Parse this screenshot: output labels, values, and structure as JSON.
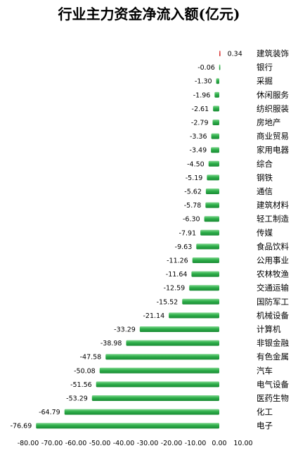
{
  "chart_data": {
    "type": "bar",
    "orientation": "horizontal",
    "title": "行业主力资金净流入额(亿元)",
    "xlabel": "",
    "ylabel": "",
    "xlim": [
      -80,
      10
    ],
    "xticks": [
      "-80.00",
      "-70.00",
      "-60.00",
      "-50.00",
      "-40.00",
      "-30.00",
      "-20.00",
      "-10.00",
      "0.00",
      "10.00"
    ],
    "grid": false,
    "legend": "none",
    "colors": {
      "positive": "#cc1f1f",
      "negative": "#2eaf4a",
      "negative_light": "#7fd68e",
      "negative_dark": "#1a8a35"
    },
    "categories": [
      "建筑装饰",
      "银行",
      "采掘",
      "休闲服务",
      "纺织服装",
      "房地产",
      "商业贸易",
      "家用电器",
      "综合",
      "钢铁",
      "通信",
      "建筑材料",
      "轻工制造",
      "传媒",
      "食品饮料",
      "公用事业",
      "农林牧渔",
      "交通运输",
      "国防军工",
      "机械设备",
      "计算机",
      "非银金融",
      "有色金属",
      "汽车",
      "电气设备",
      "医药生物",
      "化工",
      "电子"
    ],
    "values": [
      0.34,
      -0.06,
      -1.3,
      -1.96,
      -2.61,
      -2.79,
      -3.36,
      -3.49,
      -4.5,
      -5.19,
      -5.62,
      -5.78,
      -6.3,
      -7.91,
      -9.63,
      -11.26,
      -11.64,
      -12.59,
      -15.52,
      -21.14,
      -33.29,
      -38.98,
      -47.58,
      -50.08,
      -51.56,
      -53.29,
      -64.79,
      -76.69
    ],
    "value_labels": [
      "0.34",
      "-0.06",
      "-1.30",
      "-1.96",
      "-2.61",
      "-2.79",
      "-3.36",
      "-3.49",
      "-4.50",
      "-5.19",
      "-5.62",
      "-5.78",
      "-6.30",
      "-7.91",
      "-9.63",
      "-11.26",
      "-11.64",
      "-12.59",
      "-15.52",
      "-21.14",
      "-33.29",
      "-38.98",
      "-47.58",
      "-50.08",
      "-51.56",
      "-53.29",
      "-64.79",
      "-76.69"
    ]
  }
}
